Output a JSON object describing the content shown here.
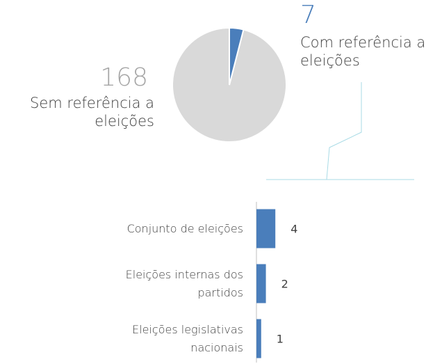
{
  "chart_data": [
    {
      "type": "pie",
      "categories": [
        "Sem referência a eleições",
        "Com referência a eleições"
      ],
      "values": [
        168,
        7
      ],
      "colors": [
        "#d9d9d9",
        "#4a7ebb"
      ]
    },
    {
      "type": "bar",
      "orientation": "horizontal",
      "categories": [
        "Conjunto de eleições",
        "Eleições internas dos partidos",
        "Eleições legislativas nacionais"
      ],
      "values": [
        4,
        2,
        1
      ],
      "color": "#4a7ebb"
    }
  ]
}
